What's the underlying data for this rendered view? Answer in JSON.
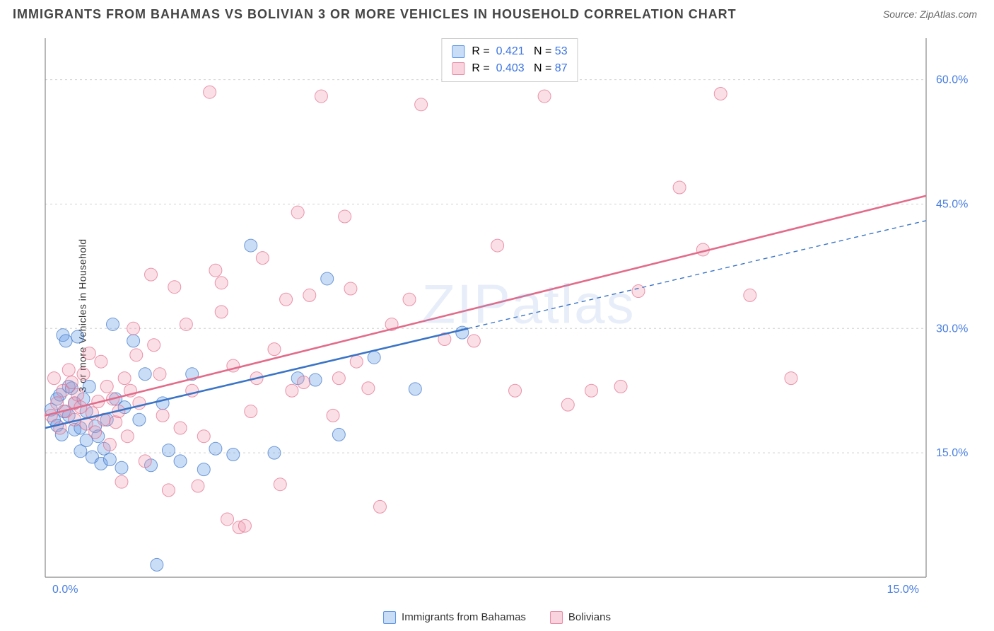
{
  "title": "IMMIGRANTS FROM BAHAMAS VS BOLIVIAN 3 OR MORE VEHICLES IN HOUSEHOLD CORRELATION CHART",
  "source": "Source: ZipAtlas.com",
  "watermark": "ZIPatlas",
  "ylabel": "3 or more Vehicles in Household",
  "chart": {
    "type": "scatter",
    "xlim": [
      0,
      15
    ],
    "ylim": [
      0,
      65
    ],
    "xticks": [
      {
        "v": 0,
        "label": "0.0%"
      },
      {
        "v": 15,
        "label": "15.0%"
      }
    ],
    "yticks": [
      {
        "v": 15,
        "label": "15.0%"
      },
      {
        "v": 30,
        "label": "30.0%"
      },
      {
        "v": 45,
        "label": "45.0%"
      },
      {
        "v": 60,
        "label": "60.0%"
      }
    ],
    "grid_color": "#d0d0d0",
    "axis_color": "#888",
    "background": "#ffffff",
    "marker_radius": 9,
    "marker_opacity": 0.32,
    "series": [
      {
        "name": "Immigrants from Bahamas",
        "color": "#5a94e6",
        "stroke": "#3a74c6",
        "R": "0.421",
        "N": "53",
        "trend": {
          "x1": 0,
          "y1": 18.0,
          "x2": 7.2,
          "y2": 30.0,
          "dash_x2": 15,
          "dash_y2": 43.0
        },
        "points": [
          [
            0.1,
            20.2
          ],
          [
            0.15,
            19.0
          ],
          [
            0.2,
            21.5
          ],
          [
            0.2,
            18.3
          ],
          [
            0.25,
            22.0
          ],
          [
            0.28,
            17.2
          ],
          [
            0.3,
            29.2
          ],
          [
            0.32,
            20.0
          ],
          [
            0.35,
            28.5
          ],
          [
            0.4,
            23.0
          ],
          [
            0.4,
            19.5
          ],
          [
            0.45,
            22.8
          ],
          [
            0.5,
            21.0
          ],
          [
            0.5,
            17.8
          ],
          [
            0.55,
            29.0
          ],
          [
            0.6,
            18.0
          ],
          [
            0.6,
            15.2
          ],
          [
            0.65,
            21.5
          ],
          [
            0.7,
            16.5
          ],
          [
            0.7,
            20.0
          ],
          [
            0.75,
            23.0
          ],
          [
            0.8,
            14.5
          ],
          [
            0.85,
            18.2
          ],
          [
            0.9,
            17.0
          ],
          [
            0.95,
            13.7
          ],
          [
            1.0,
            15.5
          ],
          [
            1.05,
            19.0
          ],
          [
            1.1,
            14.2
          ],
          [
            1.15,
            30.5
          ],
          [
            1.2,
            21.5
          ],
          [
            1.3,
            13.2
          ],
          [
            1.35,
            20.5
          ],
          [
            1.5,
            28.5
          ],
          [
            1.6,
            19.0
          ],
          [
            1.7,
            24.5
          ],
          [
            1.8,
            13.5
          ],
          [
            1.9,
            1.5
          ],
          [
            2.0,
            21.0
          ],
          [
            2.1,
            15.3
          ],
          [
            2.3,
            14.0
          ],
          [
            2.5,
            24.5
          ],
          [
            2.7,
            13.0
          ],
          [
            2.9,
            15.5
          ],
          [
            3.2,
            14.8
          ],
          [
            3.5,
            40.0
          ],
          [
            3.9,
            15.0
          ],
          [
            4.3,
            24.0
          ],
          [
            4.6,
            23.8
          ],
          [
            4.8,
            36.0
          ],
          [
            5.6,
            26.5
          ],
          [
            5.0,
            17.2
          ],
          [
            6.3,
            22.7
          ],
          [
            7.1,
            29.5
          ]
        ]
      },
      {
        "name": "Bolivians",
        "color": "#f09bb0",
        "stroke": "#e26b8a",
        "R": "0.403",
        "N": "87",
        "trend": {
          "x1": 0,
          "y1": 19.5,
          "x2": 15,
          "y2": 46.0
        },
        "points": [
          [
            0.1,
            19.5
          ],
          [
            0.15,
            24.0
          ],
          [
            0.2,
            21.0
          ],
          [
            0.25,
            18.0
          ],
          [
            0.3,
            22.5
          ],
          [
            0.35,
            20.0
          ],
          [
            0.4,
            25.0
          ],
          [
            0.45,
            23.5
          ],
          [
            0.5,
            21.0
          ],
          [
            0.5,
            19.0
          ],
          [
            0.55,
            22.0
          ],
          [
            0.6,
            20.5
          ],
          [
            0.65,
            24.5
          ],
          [
            0.7,
            18.5
          ],
          [
            0.75,
            27.0
          ],
          [
            0.8,
            19.8
          ],
          [
            0.85,
            17.5
          ],
          [
            0.9,
            21.2
          ],
          [
            0.95,
            26.0
          ],
          [
            1.0,
            19.0
          ],
          [
            1.05,
            23.0
          ],
          [
            1.1,
            16.0
          ],
          [
            1.15,
            21.5
          ],
          [
            1.2,
            18.7
          ],
          [
            1.25,
            20.0
          ],
          [
            1.3,
            11.5
          ],
          [
            1.35,
            24.0
          ],
          [
            1.4,
            17.0
          ],
          [
            1.45,
            22.5
          ],
          [
            1.5,
            30.0
          ],
          [
            1.55,
            26.8
          ],
          [
            1.6,
            21.0
          ],
          [
            1.7,
            14.0
          ],
          [
            1.8,
            36.5
          ],
          [
            1.85,
            28.0
          ],
          [
            1.95,
            24.5
          ],
          [
            2.0,
            19.5
          ],
          [
            2.1,
            10.5
          ],
          [
            2.2,
            35.0
          ],
          [
            2.3,
            18.0
          ],
          [
            2.4,
            30.5
          ],
          [
            2.5,
            22.5
          ],
          [
            2.6,
            11.0
          ],
          [
            2.7,
            17.0
          ],
          [
            2.8,
            58.5
          ],
          [
            2.9,
            37.0
          ],
          [
            3.0,
            35.5
          ],
          [
            3.1,
            7.0
          ],
          [
            3.2,
            25.5
          ],
          [
            3.3,
            6.0
          ],
          [
            3.4,
            6.2
          ],
          [
            3.5,
            20.0
          ],
          [
            3.6,
            24.0
          ],
          [
            3.7,
            38.5
          ],
          [
            3.9,
            27.5
          ],
          [
            4.0,
            11.2
          ],
          [
            4.1,
            33.5
          ],
          [
            4.2,
            22.5
          ],
          [
            4.3,
            44.0
          ],
          [
            4.4,
            23.5
          ],
          [
            4.5,
            34.0
          ],
          [
            4.7,
            58.0
          ],
          [
            4.9,
            19.5
          ],
          [
            5.0,
            24.0
          ],
          [
            5.1,
            43.5
          ],
          [
            5.3,
            26.0
          ],
          [
            5.5,
            22.8
          ],
          [
            5.7,
            8.5
          ],
          [
            5.9,
            30.5
          ],
          [
            6.2,
            33.5
          ],
          [
            6.4,
            57.0
          ],
          [
            6.8,
            28.7
          ],
          [
            7.3,
            28.5
          ],
          [
            7.7,
            40.0
          ],
          [
            8.0,
            22.5
          ],
          [
            8.5,
            58.0
          ],
          [
            8.9,
            20.8
          ],
          [
            9.3,
            22.5
          ],
          [
            9.8,
            23.0
          ],
          [
            10.1,
            34.5
          ],
          [
            10.8,
            47.0
          ],
          [
            11.2,
            39.5
          ],
          [
            11.5,
            58.3
          ],
          [
            12.0,
            34.0
          ],
          [
            12.7,
            24.0
          ],
          [
            5.2,
            34.8
          ],
          [
            3.0,
            32.0
          ]
        ]
      }
    ]
  },
  "legend": {
    "items": [
      {
        "label": "Immigrants from Bahamas",
        "fill": "#c9ddf7",
        "border": "#5a94e6"
      },
      {
        "label": "Bolivians",
        "fill": "#f9d3dd",
        "border": "#e68aa3"
      }
    ]
  }
}
